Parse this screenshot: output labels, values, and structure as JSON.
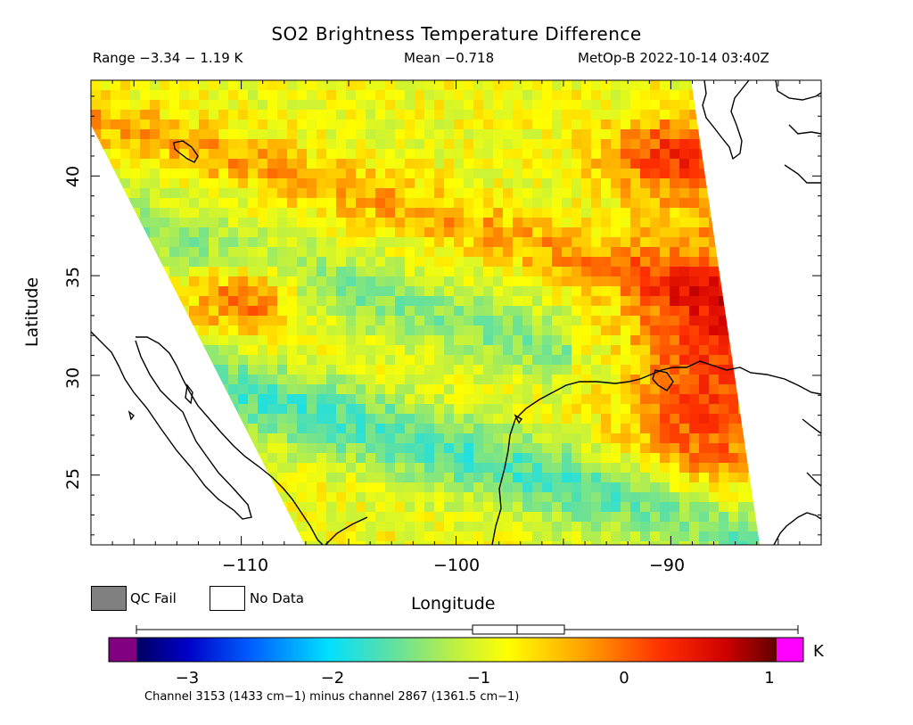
{
  "title": "SO2 Brightness Temperature Difference",
  "stats": {
    "range": "Range −3.34 − 1.19 K",
    "mean": "Mean −0.718",
    "satellite_time": "MetOp-B 2022-10-14 03:40Z"
  },
  "axes": {
    "xlabel": "Longitude",
    "ylabel": "Latitude",
    "x_ticks": [
      "−110",
      "−100",
      "−90"
    ],
    "y_ticks": [
      "40",
      "35",
      "30",
      "25"
    ],
    "lon_range": [
      -117,
      -83
    ],
    "lat_range": [
      21.5,
      44.8
    ]
  },
  "legend": {
    "qc_fail": "QC Fail",
    "no_data": "No Data"
  },
  "colorbar": {
    "unit": "K",
    "ticks": [
      "−3",
      "−2",
      "−1",
      "0",
      "1"
    ],
    "range": [
      -3.34,
      1.19
    ],
    "under_color": "#800080",
    "over_color": "#ff00ff"
  },
  "footnote": "Channel 3153 (1433 cm−1) minus channel 2867 (1361.5 cm−1)",
  "colors": {
    "qc_fail": "#808080",
    "no_data": "#ffffff"
  }
}
